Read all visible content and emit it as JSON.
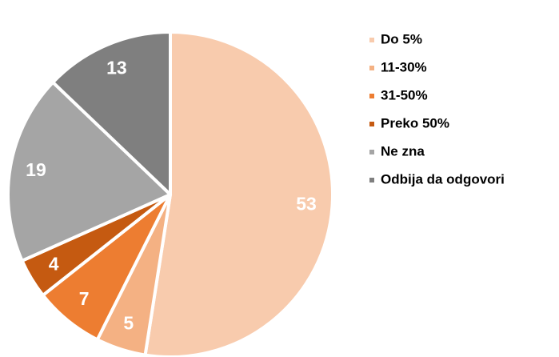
{
  "chart_data": {
    "type": "pie",
    "categories": [
      "Do 5%",
      "11-30%",
      "31-50%",
      "Preko 50%",
      "Ne zna",
      "Odbija da odgovori"
    ],
    "values": [
      53,
      5,
      7,
      4,
      19,
      13
    ],
    "colors": [
      "#f8cbad",
      "#f4b183",
      "#ed7d31",
      "#c55a11",
      "#a5a5a5",
      "#7f7f7f"
    ],
    "legend": "right"
  }
}
